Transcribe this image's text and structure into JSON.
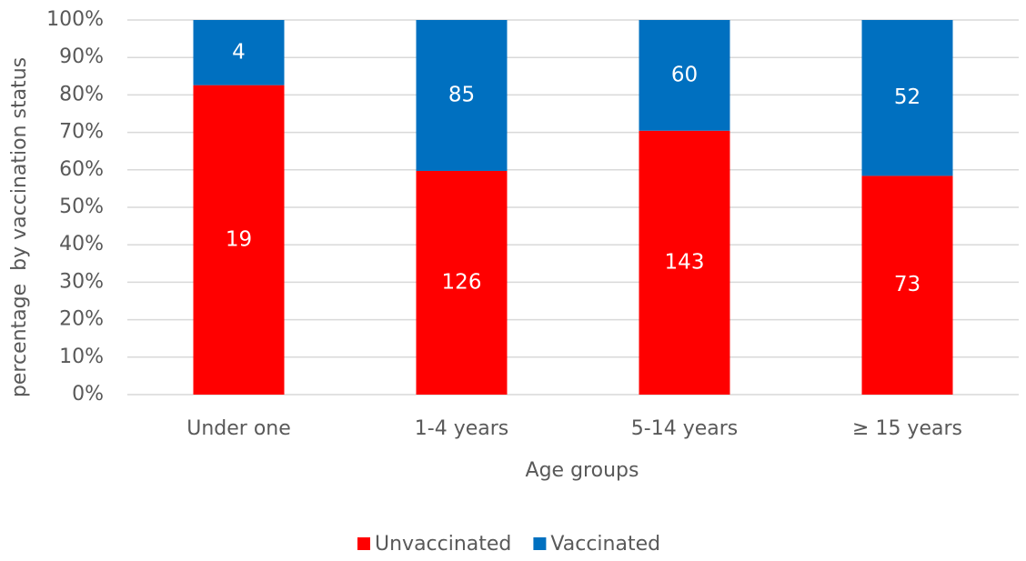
{
  "chart_data": {
    "type": "bar",
    "stack": "percent",
    "categories": [
      "Under one",
      "1-4 years",
      "5-14 years",
      "≥ 15 years"
    ],
    "series": [
      {
        "name": "Unvaccinated",
        "color": "#ff0000",
        "values": [
          19,
          126,
          143,
          73
        ]
      },
      {
        "name": "Vaccinated",
        "color": "#0070c0",
        "values": [
          4,
          85,
          60,
          52
        ]
      }
    ],
    "ylim": [
      0,
      100
    ],
    "yticks": [
      {
        "value": 0,
        "label": "0%"
      },
      {
        "value": 10,
        "label": "10%"
      },
      {
        "value": 20,
        "label": "20%"
      },
      {
        "value": 30,
        "label": "30%"
      },
      {
        "value": 40,
        "label": "40%"
      },
      {
        "value": 50,
        "label": "50%"
      },
      {
        "value": 60,
        "label": "60%"
      },
      {
        "value": 70,
        "label": "70%"
      },
      {
        "value": 80,
        "label": "80%"
      },
      {
        "value": 90,
        "label": "90%"
      },
      {
        "value": 100,
        "label": "100%"
      }
    ],
    "grid": true,
    "legend": "bottom",
    "xlabel": "Age groups",
    "ylabel": "percentage  by vaccination status"
  }
}
